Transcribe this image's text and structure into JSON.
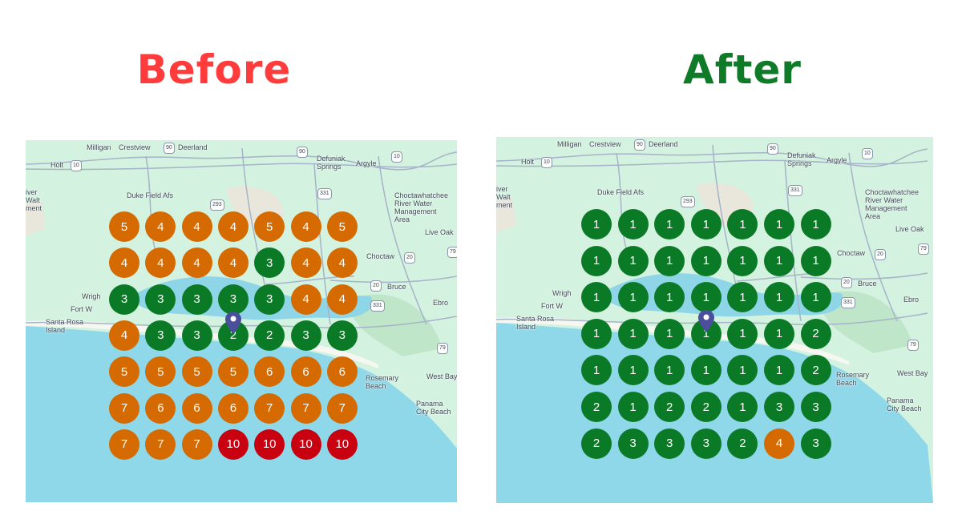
{
  "before": {
    "title": "Before",
    "title_color": "#FF3B3B",
    "grid": [
      [
        5,
        4,
        4,
        4,
        5,
        4,
        5
      ],
      [
        4,
        4,
        4,
        4,
        3,
        4,
        4
      ],
      [
        3,
        3,
        3,
        3,
        3,
        4,
        4
      ],
      [
        4,
        3,
        3,
        2,
        2,
        3,
        3
      ],
      [
        5,
        5,
        5,
        5,
        6,
        6,
        6
      ],
      [
        7,
        6,
        6,
        6,
        7,
        7,
        7
      ],
      [
        7,
        7,
        7,
        10,
        10,
        10,
        10
      ]
    ]
  },
  "after": {
    "title": "After",
    "title_color": "#0F7A28",
    "grid": [
      [
        1,
        1,
        1,
        1,
        1,
        1,
        1
      ],
      [
        1,
        1,
        1,
        1,
        1,
        1,
        1
      ],
      [
        1,
        1,
        1,
        1,
        1,
        1,
        1
      ],
      [
        1,
        1,
        1,
        1,
        1,
        1,
        2
      ],
      [
        1,
        1,
        1,
        1,
        1,
        1,
        2
      ],
      [
        2,
        1,
        2,
        2,
        1,
        3,
        3
      ],
      [
        2,
        3,
        3,
        3,
        2,
        4,
        3
      ]
    ]
  },
  "rank_colors": {
    "top": "#0B7A26",
    "mid": "#D46A00",
    "low": "#C8000F"
  },
  "pin_color": "#4B4F9B",
  "map_labels": [
    "Milligan",
    "Crestview",
    "Deerland",
    "Holt",
    "Defuniak\nSprings",
    "Argyle",
    "Duke Field Afs",
    "Choctawhatchee\nRiver Water\nManagement\nArea",
    "Live Oak",
    "Bruce",
    "Ebro",
    "Santa Rosa\nIsland",
    "Wrigh",
    "Fort W",
    "Choctaw",
    "West Bay",
    "Rosemary\nBeach",
    "Panama\nCity Beach",
    "iver\nWalt\nment"
  ],
  "road_shields": [
    "90",
    "10",
    "90",
    "10",
    "331",
    "20",
    "79",
    "79",
    "20",
    "293",
    "331"
  ]
}
